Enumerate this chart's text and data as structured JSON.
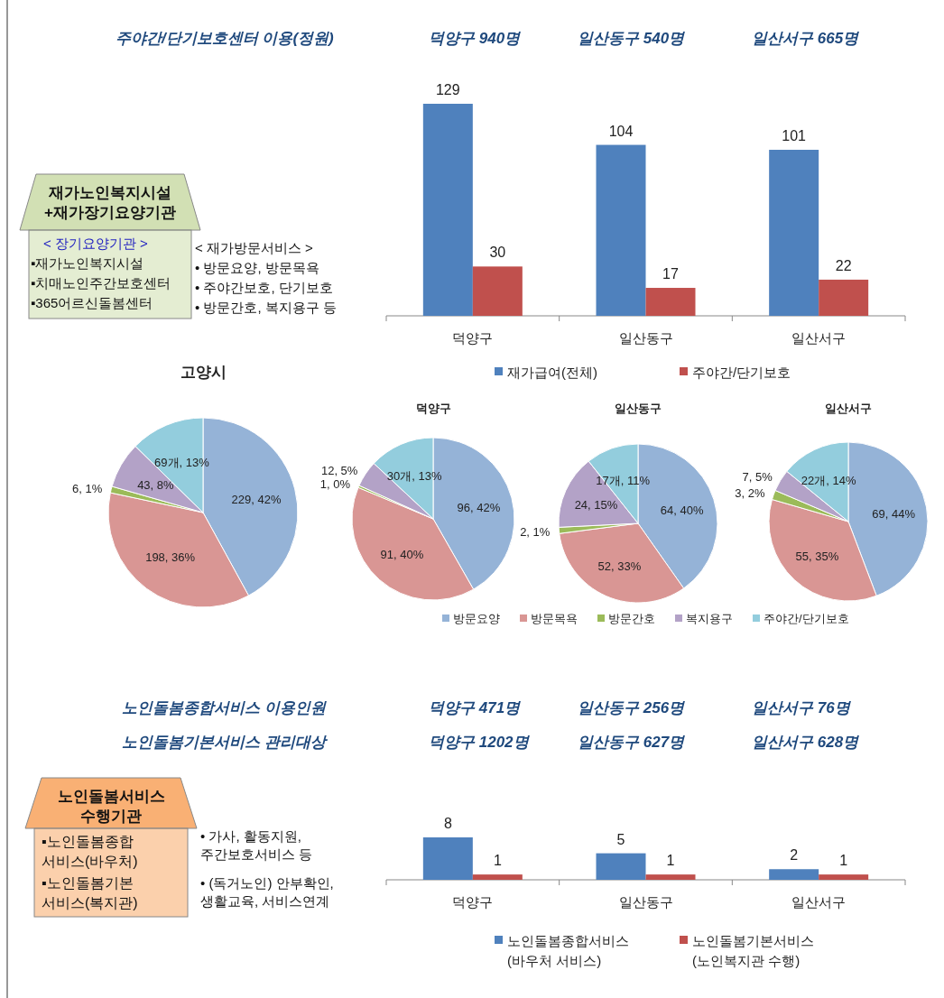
{
  "chart_data": [
    {
      "type": "other",
      "title": "재가노인복지시설\n+재가장기요양기관",
      "color": "#c3d69b",
      "annotations": [
        "< 장기요양기관 >",
        "▪재가노인복지시설",
        "▪치매노인주간보호센터",
        "▪365어르신돌봄센터",
        "< 재가방문서비스 >",
        "• 방문요양, 방문목욕",
        "• 주야간보호, 단기보호",
        "• 방문간호, 복지용구 등"
      ]
    },
    {
      "type": "bar",
      "categories": [
        "덕양구",
        "일산동구",
        "일산서구"
      ],
      "data_labels": true,
      "legend": "bottom",
      "annotations": [
        "주야간/단기보호센터 이용(정원)",
        "덕양구 940명",
        "일산동구 540명",
        "일산서구 665명"
      ],
      "series": [
        {
          "name": "재가급여(전체)",
          "color": "#4f81bd",
          "values": [
            129,
            104,
            101
          ]
        },
        {
          "name": "주야간/단기보호",
          "color": "#c0504d",
          "values": [
            30,
            17,
            22
          ]
        }
      ]
    },
    {
      "type": "pie",
      "legend": "bottom",
      "categories": [
        "방문요양",
        "방문목욕",
        "방문간호",
        "복지용구",
        "주야간/단기보호"
      ],
      "colors": [
        "#95b3d7",
        "#d99694",
        "#9bbb59",
        "#b3a2c7",
        "#93cddd"
      ],
      "series": [
        {
          "name": "고양시",
          "values": [
            229,
            198,
            6,
            43,
            69
          ],
          "value_labels": [
            "229, 42%",
            "198, 36%",
            "6, 1%",
            "43, 8%",
            "69개, 13%"
          ]
        },
        {
          "name": "덕양구",
          "values": [
            96,
            91,
            1,
            12,
            30
          ],
          "value_labels": [
            "96, 42%",
            "91, 40%",
            "1, 0%",
            "12, 5%",
            "30개, 13%"
          ]
        },
        {
          "name": "일산동구",
          "values": [
            64,
            52,
            2,
            24,
            17
          ],
          "value_labels": [
            "64, 40%",
            "52, 33%",
            "2, 1%",
            "24, 15%",
            "17개, 11%"
          ]
        },
        {
          "name": "일산서구",
          "values": [
            69,
            55,
            3,
            7,
            22
          ],
          "value_labels": [
            "69, 44%",
            "55, 35%",
            "3, 2%",
            "7, 5%",
            "22개, 14%"
          ]
        }
      ]
    },
    {
      "type": "other",
      "title": "노인돌봄서비스\n수행기관",
      "color": "#f79646",
      "annotations": [
        "▪노인돌봄종합\n서비스(바우처)",
        "▪노인돌봄기본\n서비스(복지관)",
        "• 가사, 활동지원,\n주간보호서비스 등",
        "• (독거노인) 안부확인,\n생활교육, 서비스연계"
      ]
    },
    {
      "type": "bar",
      "categories": [
        "덕양구",
        "일산동구",
        "일산서구"
      ],
      "data_labels": true,
      "legend": "bottom",
      "annotations": [
        "노인돌봄종합서비스 이용인원",
        "덕양구 471명",
        "일산동구 256명",
        "일산서구 76명",
        "노인돌봄기본서비스 관리대상",
        "덕양구 1202명",
        "일산동구 627명",
        "일산서구 628명"
      ],
      "series": [
        {
          "name": "노인돌봄종합서비스\n(바우처 서비스)",
          "color": "#4f81bd",
          "values": [
            8,
            5,
            2
          ]
        },
        {
          "name": "노인돌봄기본서비스\n(노인복지관 수행)",
          "color": "#c0504d",
          "values": [
            1,
            1,
            1
          ]
        }
      ]
    }
  ]
}
